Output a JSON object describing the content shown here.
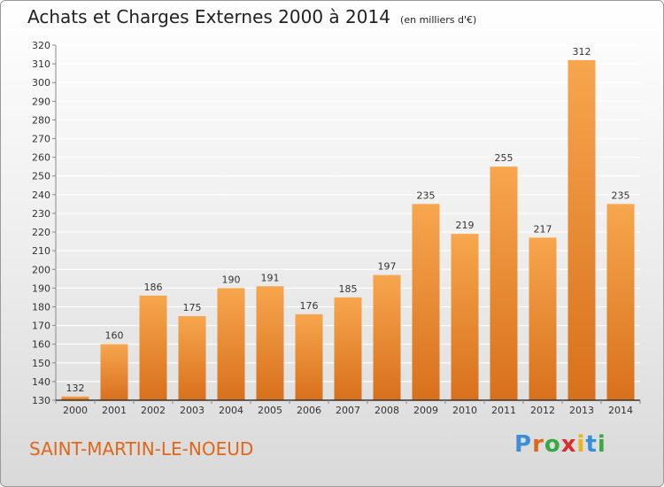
{
  "title": "Achats et Charges Externes 2000 à 2014",
  "subtitle": "(en milliers d'€)",
  "town": "SAINT-MARTIN-LE-NOEUD",
  "logo": {
    "text": "Proxiti",
    "colors": [
      "#3a8fd8",
      "#e0671a",
      "#39a845",
      "#d92e2e",
      "#e8b51a",
      "#3a8fd8",
      "#39a845"
    ]
  },
  "colors": {
    "bar_top": "#f7a64e",
    "bar_bottom": "#d8701c",
    "grid": "#ffffff",
    "axis": "#333333"
  },
  "chart_data": {
    "type": "bar",
    "title": "Achats et Charges Externes 2000 à 2014",
    "categories": [
      "2000",
      "2001",
      "2002",
      "2003",
      "2004",
      "2005",
      "2006",
      "2007",
      "2008",
      "2009",
      "2010",
      "2011",
      "2012",
      "2013",
      "2014"
    ],
    "values": [
      132,
      160,
      186,
      175,
      190,
      191,
      176,
      185,
      197,
      235,
      219,
      255,
      217,
      312,
      235
    ],
    "ylim": [
      130,
      320
    ],
    "yticks": [
      130,
      140,
      150,
      160,
      170,
      180,
      190,
      200,
      210,
      220,
      230,
      240,
      250,
      260,
      270,
      280,
      290,
      300,
      310,
      320
    ],
    "grid": true,
    "data_labels": true
  }
}
